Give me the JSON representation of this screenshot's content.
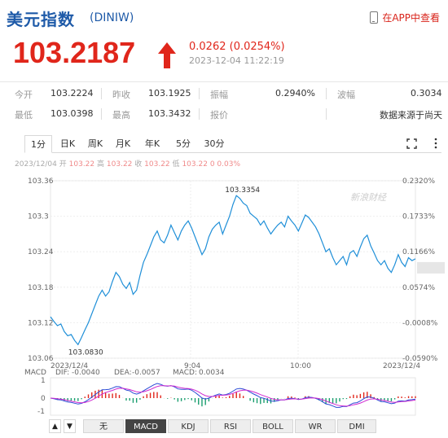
{
  "header": {
    "title": "美元指数",
    "code": "(DINIW)",
    "app_link": "在APP中查看",
    "price": "103.2187",
    "change": "0.0262 (0.0254%)",
    "timestamp": "2023-12-04 11:22:19",
    "up_color": "#e0261b"
  },
  "stats": {
    "row1": [
      {
        "label": "今开",
        "value": "103.2224"
      },
      {
        "label": "昨收",
        "value": "103.1925"
      },
      {
        "label": "振幅",
        "value": "0.2940%"
      },
      {
        "label": "波幅",
        "value": "0.3034"
      }
    ],
    "row2": [
      {
        "label": "最低",
        "value": "103.0398"
      },
      {
        "label": "最高",
        "value": "103.3432"
      },
      {
        "label": "报价",
        "value": ""
      },
      {
        "label": "",
        "value": "数据来源于尚天"
      }
    ]
  },
  "tabs": [
    "1分",
    "日K",
    "周K",
    "月K",
    "年K",
    "5分",
    "30分"
  ],
  "active_tab": "1分",
  "ohlc": {
    "date": "2023/12/04",
    "open_label": "开",
    "open": "103.22",
    "high_label": "高",
    "high": "103.22",
    "close_label": "收",
    "close": "103.22",
    "low_label": "低",
    "low": "103.22",
    "change": "0",
    "pct": "0.03%"
  },
  "chart_data": {
    "type": "line",
    "ylim": [
      103.06,
      103.36
    ],
    "y_ticks": [
      "103.36",
      "103.3",
      "103.24",
      "103.18",
      "103.12",
      "103.06"
    ],
    "pct_ticks": [
      "0.2320%",
      "0.1733%",
      "0.1166%",
      "0.0574%",
      "-0.0008%",
      "-0.0590%"
    ],
    "x_labels": [
      "2023/12/4",
      "9:04",
      "10:00",
      "2023/12/4"
    ],
    "max_label": "103.3354",
    "min_label": "103.0830",
    "watermark": "新浪财经",
    "prices": [
      103.13,
      103.122,
      103.115,
      103.118,
      103.105,
      103.098,
      103.1,
      103.09,
      103.083,
      103.095,
      103.108,
      103.12,
      103.135,
      103.15,
      103.165,
      103.175,
      103.165,
      103.172,
      103.19,
      103.205,
      103.198,
      103.185,
      103.178,
      103.188,
      103.168,
      103.175,
      103.2,
      103.222,
      103.235,
      103.25,
      103.265,
      103.275,
      103.26,
      103.255,
      103.268,
      103.285,
      103.272,
      103.26,
      103.275,
      103.285,
      103.292,
      103.28,
      103.265,
      103.25,
      103.235,
      103.245,
      103.265,
      103.278,
      103.285,
      103.29,
      103.27,
      103.285,
      103.3,
      103.32,
      103.335,
      103.33,
      103.322,
      103.318,
      103.305,
      103.3,
      103.295,
      103.285,
      103.292,
      103.28,
      103.27,
      103.278,
      103.285,
      103.29,
      103.282,
      103.3,
      103.292,
      103.285,
      103.275,
      103.288,
      103.302,
      103.298,
      103.29,
      103.282,
      103.27,
      103.255,
      103.24,
      103.245,
      103.23,
      103.218,
      103.225,
      103.232,
      103.218,
      103.238,
      103.242,
      103.232,
      103.248,
      103.262,
      103.268,
      103.25,
      103.238,
      103.225,
      103.218,
      103.225,
      103.212,
      103.205,
      103.218,
      103.235,
      103.222,
      103.215,
      103.23,
      103.225,
      103.228
    ],
    "macd": {
      "label": "MACD",
      "dif_label": "DIF:",
      "dif": "-0.0040",
      "dea_label": "DEA:",
      "dea": "-0.0057",
      "macd_label": "MACD:",
      "macd": "0.0034",
      "y_ticks": [
        "1",
        "0",
        "-1"
      ],
      "dif_color": "#2b4bd6",
      "dea_color": "#d02ad0"
    }
  },
  "indicators": [
    "无",
    "MACD",
    "KDJ",
    "RSI",
    "BOLL",
    "WR",
    "DMI"
  ],
  "active_indicator": "MACD"
}
